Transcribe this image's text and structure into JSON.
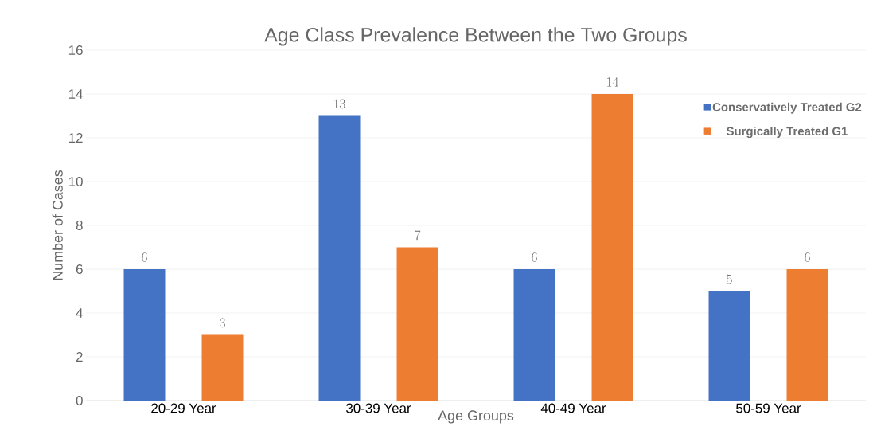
{
  "chart_data": {
    "type": "bar",
    "title": "Age Class Prevalence Between the Two Groups",
    "xlabel": "Age Groups",
    "ylabel": "Number of Cases",
    "categories": [
      "20-29 Year",
      "30-39 Year",
      "40-49 Year",
      "50-59 Year"
    ],
    "series": [
      {
        "name": "Conservatively Treated G2",
        "color": "#4472c4",
        "values": [
          6,
          13,
          6,
          5
        ]
      },
      {
        "name": "Surgically Treated G1",
        "color": "#ed7d31",
        "values": [
          3,
          7,
          14,
          6
        ]
      }
    ],
    "ylim": [
      0,
      16
    ],
    "yticks": [
      0,
      2,
      4,
      6,
      8,
      10,
      12,
      14,
      16
    ],
    "grid": "y",
    "legend": "top right",
    "data_labels": true
  }
}
